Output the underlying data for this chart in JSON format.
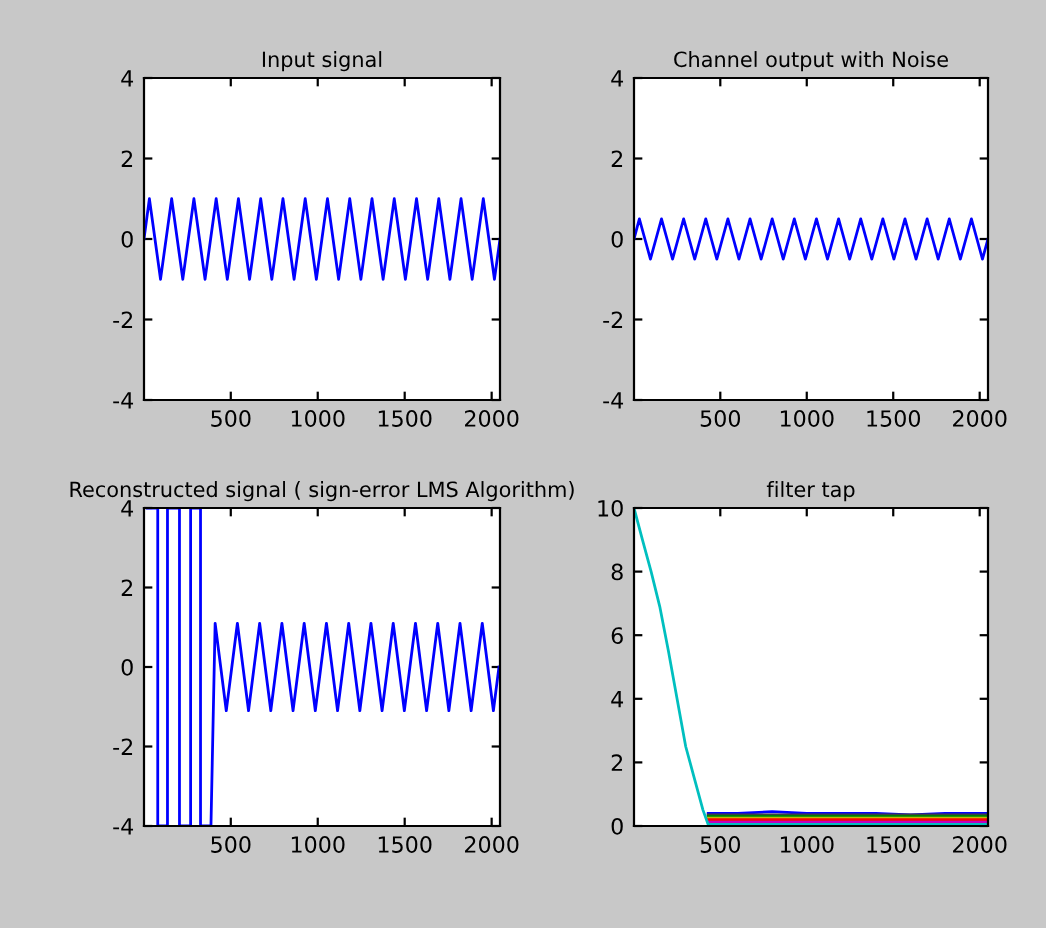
{
  "chart_data": [
    {
      "type": "line",
      "title": "Input signal",
      "xlim": [
        1,
        2048
      ],
      "ylim": [
        -4,
        4
      ],
      "xticks": [
        500,
        1000,
        1500,
        2000
      ],
      "yticks": [
        -4,
        -2,
        0,
        2,
        4
      ],
      "grid": false,
      "series": [
        {
          "color": "#0000ff",
          "x": [
            1,
            32,
            64,
            96,
            128,
            160,
            192,
            224,
            256,
            288,
            320,
            352,
            384,
            416,
            448,
            480,
            512,
            544,
            576,
            608,
            640,
            672,
            704,
            736,
            768,
            800,
            832,
            864,
            896,
            928,
            960,
            992,
            1024,
            1056,
            1088,
            1120,
            1152,
            1184,
            1216,
            1248,
            1280,
            1312,
            1344,
            1376,
            1408,
            1440,
            1472,
            1504,
            1536,
            1568,
            1600,
            1632,
            1664,
            1696,
            1728,
            1760,
            1792,
            1824,
            1856,
            1888,
            1920,
            1952,
            1984,
            2016,
            2048
          ],
          "values": [
            0,
            1,
            0,
            -1,
            0,
            1,
            0,
            -1,
            0,
            1,
            0,
            -1,
            0,
            1,
            0,
            -1,
            0,
            1,
            0,
            -1,
            0,
            1,
            0,
            -1,
            0,
            1,
            0,
            -1,
            0,
            1,
            0,
            -1,
            0,
            1,
            0,
            -1,
            0,
            1,
            0,
            -1,
            0,
            1,
            0,
            -1,
            0,
            1,
            0,
            -1,
            0,
            1,
            0,
            -1,
            0,
            1,
            0,
            -1,
            0,
            1,
            0,
            -1,
            0,
            1,
            0,
            -1,
            0
          ]
        }
      ]
    },
    {
      "type": "line",
      "title": "Channel output with Noise",
      "xlim": [
        1,
        2048
      ],
      "ylim": [
        -4,
        4
      ],
      "xticks": [
        500,
        1000,
        1500,
        2000
      ],
      "yticks": [
        -4,
        -2,
        0,
        2,
        4
      ],
      "grid": false,
      "series": [
        {
          "color": "#0000ff",
          "x": [
            1,
            32,
            64,
            96,
            128,
            160,
            192,
            224,
            256,
            288,
            320,
            352,
            384,
            416,
            448,
            480,
            512,
            544,
            576,
            608,
            640,
            672,
            704,
            736,
            768,
            800,
            832,
            864,
            896,
            928,
            960,
            992,
            1024,
            1056,
            1088,
            1120,
            1152,
            1184,
            1216,
            1248,
            1280,
            1312,
            1344,
            1376,
            1408,
            1440,
            1472,
            1504,
            1536,
            1568,
            1600,
            1632,
            1664,
            1696,
            1728,
            1760,
            1792,
            1824,
            1856,
            1888,
            1920,
            1952,
            1984,
            2016,
            2048
          ],
          "values": [
            0,
            0.5,
            0,
            -0.5,
            0,
            0.5,
            0,
            -0.5,
            0,
            0.5,
            0,
            -0.5,
            0,
            0.5,
            0,
            -0.5,
            0,
            0.5,
            0,
            -0.5,
            0,
            0.5,
            0,
            -0.5,
            0,
            0.5,
            0,
            -0.5,
            0,
            0.5,
            0,
            -0.5,
            0,
            0.5,
            0,
            -0.5,
            0,
            0.5,
            0,
            -0.5,
            0,
            0.5,
            0,
            -0.5,
            0,
            0.5,
            0,
            -0.5,
            0,
            0.5,
            0,
            -0.5,
            0,
            0.5,
            0,
            -0.5,
            0,
            0.5,
            0,
            -0.5,
            0,
            0.5,
            0,
            -0.5,
            0
          ]
        }
      ]
    },
    {
      "type": "line",
      "title": "Reconstructed signal ( sign-error LMS Algorithm)",
      "xlim": [
        1,
        2048
      ],
      "ylim": [
        -4,
        4
      ],
      "xticks": [
        500,
        1000,
        1500,
        2000
      ],
      "yticks": [
        -4,
        -2,
        0,
        2,
        4
      ],
      "grid": false,
      "series": [
        {
          "color": "#0000ff",
          "x": [
            20,
            80,
            80,
            136,
            136,
            205,
            205,
            269,
            269,
            326,
            326,
            386,
            410,
            442,
            474,
            506,
            538,
            570,
            602,
            634,
            666,
            698,
            730,
            762,
            794,
            826,
            858,
            890,
            922,
            954,
            986,
            1018,
            1050,
            1082,
            1114,
            1146,
            1178,
            1210,
            1242,
            1274,
            1306,
            1338,
            1370,
            1402,
            1434,
            1466,
            1498,
            1530,
            1562,
            1594,
            1626,
            1658,
            1690,
            1722,
            1754,
            1786,
            1818,
            1850,
            1882,
            1914,
            1946,
            1978,
            2010,
            2042
          ],
          "values": [
            4,
            4,
            -4,
            -4,
            4,
            4,
            -4,
            -4,
            4,
            4,
            -4,
            -4,
            1.1,
            0,
            -1.1,
            0,
            1.1,
            0,
            -1.1,
            0,
            1.1,
            0,
            -1.1,
            0,
            1.1,
            0,
            -1.1,
            0,
            1.1,
            0,
            -1.1,
            0,
            1.1,
            0,
            -1.1,
            0,
            1.1,
            0,
            -1.1,
            0,
            1.1,
            0,
            -1.1,
            0,
            1.1,
            0,
            -1.1,
            0,
            1.1,
            0,
            -1.1,
            0,
            1.1,
            0,
            -1.1,
            0,
            1.1,
            0,
            -1.1,
            0,
            1.1,
            0,
            -1.1,
            0
          ]
        }
      ]
    },
    {
      "type": "line",
      "title": "filter tap",
      "xlim": [
        1,
        2048
      ],
      "ylim": [
        0,
        10
      ],
      "xticks": [
        500,
        1000,
        1500,
        2000
      ],
      "yticks": [
        0,
        2,
        4,
        6,
        8,
        10
      ],
      "grid": false,
      "series": [
        {
          "color": "#0000ff",
          "x": [
            430,
            600,
            800,
            1000,
            1200,
            1400,
            1600,
            1800,
            2048
          ],
          "values": [
            0.4,
            0.4,
            0.45,
            0.4,
            0.4,
            0.4,
            0.35,
            0.4,
            0.4
          ]
        },
        {
          "color": "#404040",
          "x": [
            430,
            600,
            800,
            1000,
            1200,
            1400,
            1600,
            1800,
            2048
          ],
          "values": [
            0.35,
            0.35,
            0.35,
            0.35,
            0.35,
            0.35,
            0.35,
            0.35,
            0.35
          ]
        },
        {
          "color": "#008000",
          "x": [
            430,
            600,
            800,
            1000,
            1200,
            1400,
            1600,
            1800,
            2048
          ],
          "values": [
            0.3,
            0.3,
            0.3,
            0.3,
            0.3,
            0.3,
            0.3,
            0.3,
            0.3
          ]
        },
        {
          "color": "#bfbf00",
          "x": [
            430,
            600,
            800,
            1000,
            1200,
            1400,
            1600,
            1800,
            2048
          ],
          "values": [
            0.25,
            0.25,
            0.25,
            0.25,
            0.25,
            0.25,
            0.25,
            0.25,
            0.25
          ]
        },
        {
          "color": "#ff0000",
          "x": [
            430,
            600,
            850,
            1000,
            1200,
            1400,
            1600,
            1800,
            2048
          ],
          "values": [
            0.2,
            0.2,
            0.2,
            0.2,
            0.2,
            0.2,
            0.2,
            0.2,
            0.2
          ]
        },
        {
          "color": "#bf00bf",
          "x": [
            430,
            600,
            800,
            1000,
            1200,
            1400,
            1600,
            1800,
            2048
          ],
          "values": [
            0.12,
            0.12,
            0.12,
            0.12,
            0.12,
            0.12,
            0.12,
            0.12,
            0.12
          ]
        },
        {
          "color": "#00bfbf",
          "x": [
            1,
            50,
            100,
            150,
            200,
            250,
            300,
            350,
            400,
            430,
            600,
            800,
            1000,
            1200,
            1400,
            1600,
            1800,
            2048
          ],
          "values": [
            10,
            9,
            8,
            6.9,
            5.5,
            4,
            2.5,
            1.5,
            0.5,
            0.05,
            0.05,
            0.05,
            0.05,
            0.05,
            0.05,
            0.05,
            0.05,
            0.05
          ]
        }
      ]
    }
  ]
}
